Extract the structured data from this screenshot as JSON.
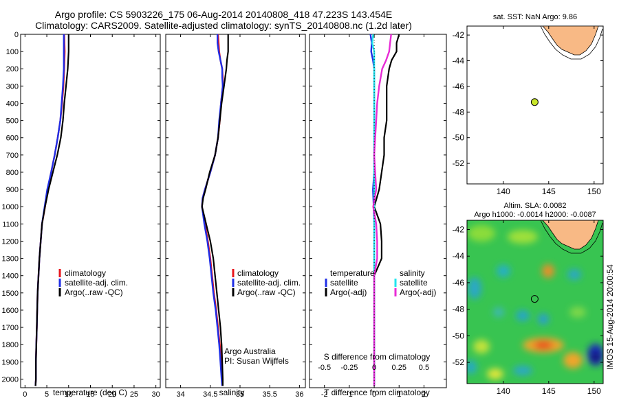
{
  "header": {
    "title_line1": "Argo profile: CS 5903226_175 06-Aug-2014 20140808_418 47.223S 143.454E",
    "title_line2": "Climatology: CARS2009. Satellite-adjusted climatology: synTS_20140808.nc (1.2d later)"
  },
  "colors": {
    "climatology": "#e8151b",
    "satellite": "#1f2ee6",
    "argo": "#000000",
    "satellite_diff": "#22e5ee",
    "argo_diff": "#e82bd6",
    "land": "#f8b985",
    "float_marker": "#c8e62a"
  },
  "side_text": "IMOS 15-Aug-2014 20:00:54",
  "chart_data": [
    {
      "id": "temperature",
      "type": "line",
      "xlabel": "temperature (deg C)",
      "ylabel": "",
      "xlim": [
        -1,
        31
      ],
      "ylim": [
        2050,
        0
      ],
      "x_ticks": [
        0,
        5,
        10,
        15,
        20,
        25,
        30
      ],
      "y_ticks": [
        0,
        100,
        200,
        300,
        400,
        500,
        600,
        700,
        800,
        900,
        1000,
        1100,
        1200,
        1300,
        1400,
        1500,
        1600,
        1700,
        1800,
        1900,
        2000
      ],
      "depth": [
        0,
        100,
        200,
        300,
        400,
        500,
        600,
        700,
        800,
        900,
        1000,
        1100,
        1200,
        1300,
        1400,
        1500,
        1600,
        1700,
        1800,
        1900,
        2000,
        2040
      ],
      "series": [
        {
          "name": "climatology",
          "color_key": "climatology",
          "values": [
            9.0,
            9.1,
            9.0,
            8.8,
            8.5,
            8.1,
            7.5,
            6.8,
            6.0,
            5.2,
            4.6,
            3.9,
            3.6,
            3.3,
            3.1,
            2.9,
            2.8,
            2.7,
            2.6,
            2.5,
            2.5,
            2.4
          ]
        },
        {
          "name": "satellite-adj. clim.",
          "color_key": "satellite",
          "values": [
            8.9,
            8.9,
            8.9,
            8.7,
            8.4,
            8.1,
            7.5,
            6.8,
            6.0,
            5.1,
            4.5,
            3.9,
            3.6,
            3.3,
            3.1,
            2.9,
            2.8,
            2.7,
            2.6,
            2.5,
            2.5,
            2.4
          ]
        },
        {
          "name": "Argo(..raw -QC)",
          "color_key": "argo",
          "values": [
            10.0,
            10.0,
            9.8,
            9.4,
            9.0,
            8.7,
            8.2,
            7.4,
            6.4,
            5.4,
            4.6,
            3.9,
            3.6,
            3.3,
            3.1,
            2.9,
            2.8,
            2.7,
            2.6,
            2.5,
            2.5,
            2.4
          ]
        }
      ],
      "legend": [
        "climatology",
        "satellite-adj. clim.",
        "Argo(..raw -QC)"
      ]
    },
    {
      "id": "salinity",
      "type": "line",
      "xlabel": "salinity",
      "xlim": [
        33.75,
        36.1
      ],
      "ylim": [
        2050,
        0
      ],
      "x_ticks": [
        34,
        34.5,
        35,
        35.5,
        36
      ],
      "x_tick_labels": [
        "34",
        "34.5",
        "35",
        "35.5",
        "36"
      ],
      "depth": [
        0,
        50,
        100,
        150,
        200,
        250,
        300,
        400,
        500,
        600,
        700,
        800,
        900,
        950,
        1000,
        1100,
        1200,
        1300,
        1400,
        1500,
        1600,
        1700,
        1800,
        1900,
        2000,
        2040
      ],
      "series": [
        {
          "name": "climatology",
          "color_key": "climatology",
          "values": [
            34.63,
            34.64,
            34.65,
            34.67,
            34.7,
            34.71,
            34.71,
            34.68,
            34.66,
            34.63,
            34.58,
            34.5,
            34.41,
            34.37,
            34.36,
            34.41,
            34.46,
            34.5,
            34.53,
            34.56,
            34.6,
            34.63,
            34.66,
            34.68,
            34.7,
            34.7
          ]
        },
        {
          "name": "satellite-adj. clim.",
          "color_key": "satellite",
          "values": [
            34.62,
            34.62,
            34.64,
            34.67,
            34.7,
            34.7,
            34.71,
            34.68,
            34.65,
            34.63,
            34.58,
            34.5,
            34.41,
            34.37,
            34.36,
            34.4,
            34.45,
            34.49,
            34.52,
            34.55,
            34.59,
            34.62,
            34.65,
            34.67,
            34.69,
            34.7
          ]
        },
        {
          "name": "Argo(..raw -QC)",
          "color_key": "argo",
          "values": [
            34.8,
            34.8,
            34.8,
            34.78,
            34.77,
            34.75,
            34.73,
            34.69,
            34.66,
            34.63,
            34.58,
            34.49,
            34.42,
            34.38,
            34.36,
            34.43,
            34.5,
            34.55,
            34.58,
            34.61,
            34.64,
            34.67,
            34.69,
            34.7,
            34.71,
            34.71
          ]
        }
      ],
      "legend": [
        "climatology",
        "satellite-adj. clim.",
        "Argo(..raw -QC)"
      ],
      "annotation_line1": "Argo Australia",
      "annotation_line2": "PI: Susan Wijffels"
    },
    {
      "id": "differences",
      "type": "line",
      "xlabel": "T difference from climatology",
      "xlabel_top": "S difference from climatology",
      "xlim": [
        -2.6,
        2.9
      ],
      "ylim": [
        2050,
        0
      ],
      "x_ticks": [
        -2,
        -1,
        0,
        1,
        2
      ],
      "top_ticks": [
        -0.5,
        -0.25,
        0,
        0.25,
        0.5
      ],
      "top_tick_labels": [
        "-0.5",
        "-0.25",
        "0",
        "0.25",
        "0.5"
      ],
      "depth": [
        0,
        50,
        100,
        150,
        200,
        300,
        400,
        500,
        600,
        700,
        800,
        900,
        1000,
        1100,
        1200,
        1300,
        1400,
        1500,
        1600,
        1700,
        1800,
        1900,
        2000,
        2040
      ],
      "series": [
        {
          "name": "temperature satellite",
          "color_key": "satellite",
          "values": [
            -0.15,
            -0.1,
            -0.12,
            -0.05,
            0.0,
            0.0,
            0.0,
            0.0,
            0.0,
            0.0,
            0.0,
            -0.05,
            -0.02,
            0.0,
            0.0,
            0.0,
            0.0,
            0.0,
            0.0,
            0.0,
            0.0,
            0.0,
            0.0,
            0.0
          ]
        },
        {
          "name": "temperature Argo(-adj)",
          "color_key": "argo",
          "values": [
            1.0,
            0.9,
            0.9,
            0.7,
            0.6,
            0.5,
            0.5,
            0.5,
            0.4,
            0.4,
            0.3,
            0.2,
            0.0,
            0.25,
            0.3,
            0.3,
            0.0,
            0.0,
            0.0,
            0.0,
            0.0,
            0.0,
            0.0,
            0.0
          ]
        },
        {
          "name": "salinity satellite",
          "color_key": "satellite_diff",
          "values": [
            -0.01,
            -0.02,
            0.0,
            0.0,
            0.0,
            0.0,
            0.0,
            0.0,
            0.0,
            0.0,
            0.0,
            0.0,
            0.0,
            0.0,
            0.0,
            0.0,
            0.0,
            0.0,
            0.0,
            0.0,
            0.0,
            0.0,
            0.0,
            0.0
          ]
        },
        {
          "name": "salinity Argo(-adj)",
          "color_key": "argo_diff",
          "values": [
            0.17,
            0.16,
            0.15,
            0.12,
            0.08,
            0.05,
            0.03,
            0.02,
            0.01,
            0.0,
            0.01,
            0.02,
            -0.01,
            0.02,
            0.03,
            0.03,
            0.0,
            0.0,
            0.0,
            0.0,
            0.0,
            0.0,
            0.0,
            0.0
          ]
        }
      ],
      "legend_headers": [
        "temperature",
        "salinity"
      ],
      "legend_temperature": [
        "satellite",
        "Argo(-adj)"
      ],
      "legend_salinity": [
        "satellite",
        "Argo(-adj)"
      ]
    },
    {
      "id": "sst_map",
      "type": "scatter",
      "title": "sat. SST: NaN Argo: 9.86",
      "xlim": [
        136,
        151
      ],
      "ylim": [
        -53.6,
        -41.3
      ],
      "x_ticks": [
        140,
        145,
        150
      ],
      "y_ticks": [
        -42,
        -44,
        -46,
        -48,
        -50,
        -52
      ],
      "points": [
        {
          "x": 143.454,
          "y": -47.223
        }
      ]
    },
    {
      "id": "sla_map",
      "type": "heatmap",
      "title_line1": "Altim. SLA: 0.0082",
      "title_line2": "Argo h1000: -0.0014 h2000: -0.0087",
      "xlim": [
        136,
        151
      ],
      "ylim": [
        -53.6,
        -41.3
      ],
      "x_ticks": [
        140,
        145,
        150
      ],
      "y_ticks": [
        -42,
        -44,
        -46,
        -48,
        -50,
        -52
      ],
      "points": [
        {
          "x": 143.454,
          "y": -47.223
        }
      ]
    }
  ]
}
